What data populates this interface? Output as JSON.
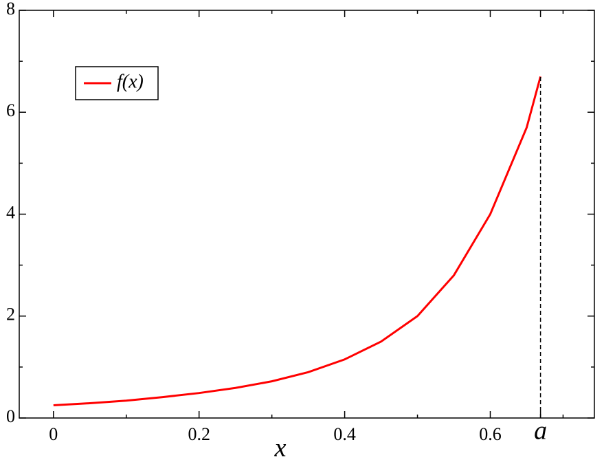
{
  "chart_data": {
    "type": "line",
    "x": [
      0,
      0.05,
      0.1,
      0.15,
      0.2,
      0.25,
      0.3,
      0.35,
      0.4,
      0.45,
      0.5,
      0.55,
      0.6,
      0.65,
      0.669
    ],
    "series": [
      {
        "name": "f(x)",
        "color": "#ff0000",
        "values": [
          0.25,
          0.29,
          0.34,
          0.41,
          0.49,
          0.59,
          0.72,
          0.9,
          1.15,
          1.5,
          2.0,
          2.8,
          4.0,
          5.7,
          6.7
        ]
      }
    ],
    "xlabel": "x",
    "xlim": [
      -0.047,
      0.743
    ],
    "ylim": [
      0,
      8
    ],
    "xticks": [
      0,
      0.2,
      0.4,
      0.6,
      {
        "value": 0.669,
        "label": "a"
      }
    ],
    "xminorticks": [
      0.1,
      0.3,
      0.5,
      0.7
    ],
    "yticks": [
      0,
      2,
      4,
      6,
      8
    ],
    "yminorticks": [
      1,
      3,
      5,
      7
    ],
    "legend": "upper left"
  }
}
